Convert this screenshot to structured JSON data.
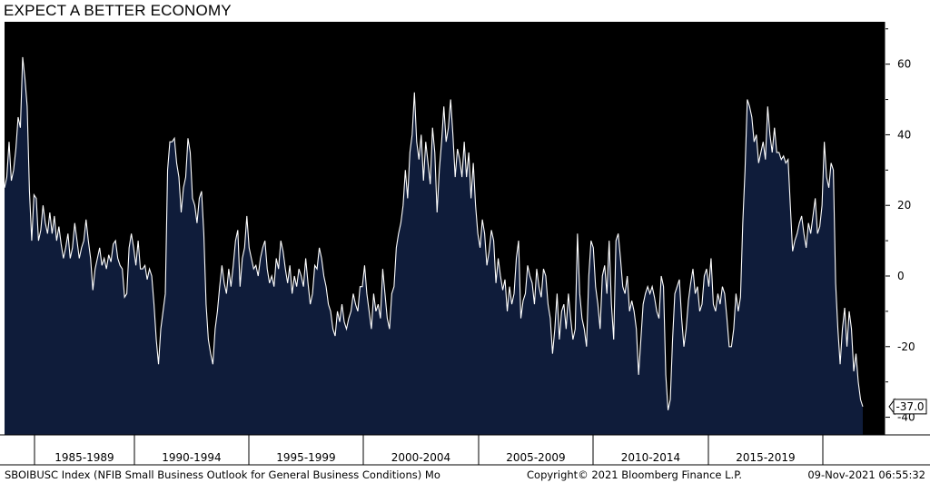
{
  "title": "EXPECT A BETTER ECONOMY",
  "chart_data": {
    "type": "area",
    "x_range": [
      "1983-01",
      "2021-10"
    ],
    "ylim": [
      -45,
      72
    ],
    "y_ticks": [
      60,
      40,
      20,
      0,
      -20,
      -40
    ],
    "x_tick_labels": [
      "1985-1989",
      "1990-1994",
      "1995-1999",
      "2000-2004",
      "2005-2009",
      "2010-2014",
      "2015-2019"
    ],
    "last_value_label": "-37.0",
    "series": [
      {
        "values": [
          25,
          28,
          38,
          27,
          30,
          36,
          45,
          42,
          62,
          56,
          48,
          24,
          10,
          23,
          22,
          10,
          13,
          20,
          15,
          12,
          18,
          12,
          17,
          10,
          14,
          9,
          5,
          8,
          12,
          5,
          8,
          15,
          10,
          5,
          8,
          10,
          16,
          10,
          5,
          -4,
          2,
          5,
          8,
          3,
          5,
          2,
          6,
          4,
          9,
          10,
          5,
          3,
          2,
          -6,
          -5,
          8,
          12,
          8,
          3,
          10,
          2,
          2,
          3,
          -1,
          2,
          0,
          -8,
          -18,
          -25,
          -15,
          -10,
          -5,
          30,
          38,
          38,
          39,
          32,
          28,
          18,
          25,
          28,
          39,
          35,
          22,
          20,
          15,
          22,
          24,
          12,
          -8,
          -18,
          -22,
          -25,
          -15,
          -10,
          -3,
          3,
          -2,
          -5,
          2,
          -3,
          3,
          10,
          13,
          -3,
          5,
          8,
          17,
          8,
          5,
          2,
          3,
          0,
          5,
          8,
          10,
          2,
          -2,
          0,
          -3,
          5,
          2,
          10,
          7,
          2,
          -2,
          3,
          -5,
          0,
          -3,
          2,
          0,
          -3,
          5,
          -2,
          -8,
          -5,
          3,
          2,
          8,
          5,
          0,
          -3,
          -8,
          -10,
          -15,
          -17,
          -10,
          -13,
          -8,
          -13,
          -15,
          -12,
          -10,
          -5,
          -8,
          -10,
          -3,
          -3,
          3,
          -5,
          -10,
          -15,
          -5,
          -10,
          -8,
          -12,
          2,
          -5,
          -12,
          -15,
          -5,
          -3,
          8,
          12,
          15,
          20,
          30,
          22,
          35,
          40,
          52,
          38,
          33,
          40,
          27,
          38,
          32,
          26,
          42,
          35,
          18,
          30,
          38,
          48,
          38,
          42,
          50,
          40,
          28,
          36,
          33,
          28,
          38,
          28,
          35,
          22,
          32,
          20,
          12,
          8,
          16,
          12,
          3,
          7,
          13,
          10,
          -2,
          5,
          0,
          -4,
          -1,
          -10,
          -3,
          -8,
          -5,
          5,
          10,
          -12,
          -7,
          -5,
          3,
          0,
          -2,
          -8,
          2,
          -3,
          -6,
          2,
          0,
          -8,
          -12,
          -22,
          -15,
          -5,
          -18,
          -10,
          -8,
          -15,
          -5,
          -12,
          -18,
          -15,
          12,
          -5,
          -12,
          -15,
          -20,
          0,
          10,
          8,
          -3,
          -8,
          -15,
          0,
          3,
          -5,
          10,
          -8,
          -18,
          10,
          12,
          5,
          -3,
          -5,
          0,
          -10,
          -7,
          -10,
          -15,
          -28,
          -18,
          -8,
          -5,
          -3,
          -5,
          -3,
          -6,
          -10,
          -12,
          0,
          -3,
          -28,
          -38,
          -35,
          -18,
          -5,
          -3,
          -1,
          -12,
          -20,
          -15,
          -7,
          -2,
          2,
          -5,
          -3,
          -10,
          -8,
          0,
          2,
          -3,
          5,
          -8,
          -10,
          -5,
          -8,
          -3,
          -5,
          -12,
          -20,
          -20,
          -15,
          -5,
          -10,
          -6,
          15,
          30,
          50,
          48,
          45,
          38,
          40,
          32,
          35,
          38,
          33,
          48,
          40,
          35,
          42,
          35,
          35,
          33,
          34,
          32,
          33,
          20,
          7,
          10,
          12,
          15,
          17,
          12,
          8,
          15,
          12,
          17,
          22,
          12,
          14,
          20,
          38,
          28,
          25,
          32,
          30,
          -2,
          -15,
          -25,
          -15,
          -9,
          -20,
          -10,
          -15,
          -27,
          -22,
          -30,
          -35,
          -37
        ]
      }
    ]
  },
  "footer": {
    "left": "SBOIBUSC Index (NFIB Small Business Outlook for General Business Conditions)  Mo",
    "center": "Copyright© 2021 Bloomberg Finance L.P.",
    "right": "09-Nov-2021 06:55:32"
  },
  "colors": {
    "background": "#000000",
    "area_fill": "#0f1c3a",
    "line": "#ffffff",
    "axis": "#ffffff"
  }
}
